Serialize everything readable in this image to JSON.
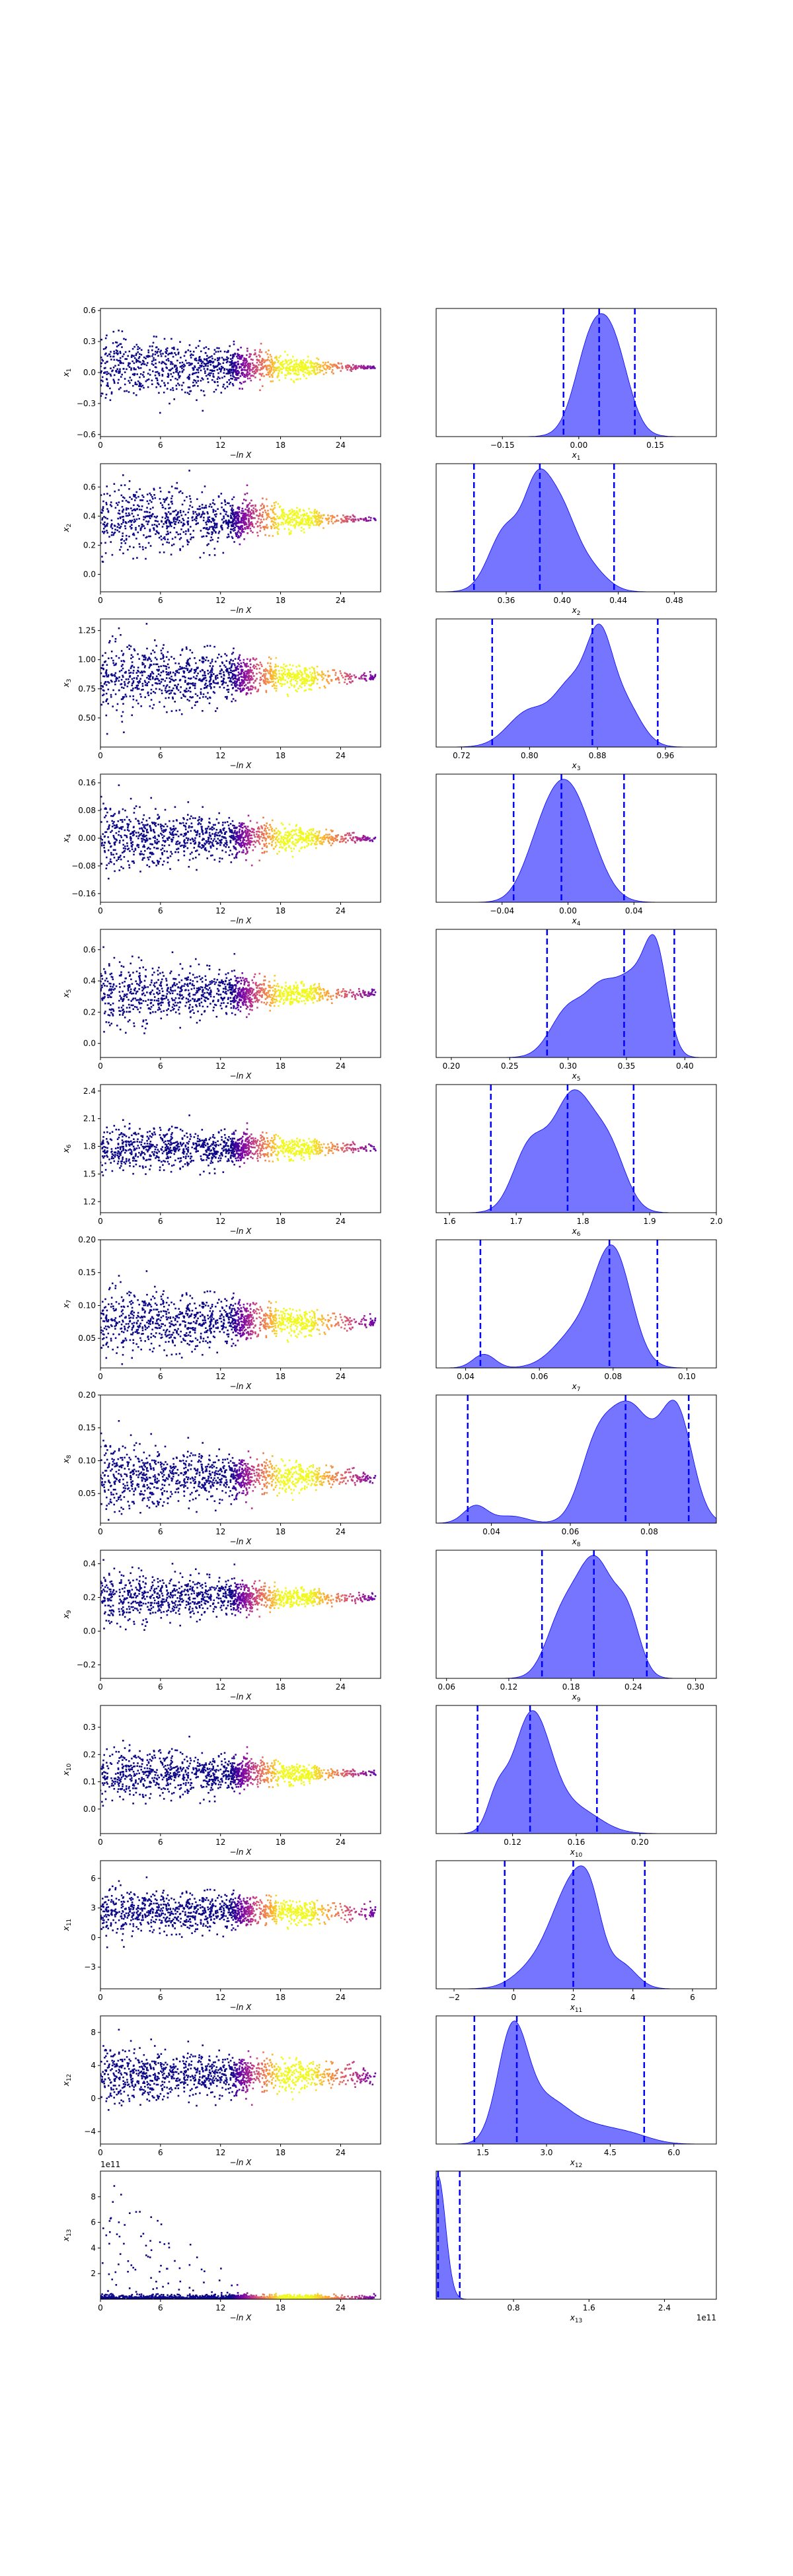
{
  "figure": {
    "type": "nested-sampling-run-plot",
    "left_xlabel": "−ln X",
    "colormap": [
      "#0d0887",
      "#6a00a8",
      "#b12a90",
      "#e16462",
      "#fca636",
      "#f0f921"
    ],
    "kde_fill": "#6666ff",
    "kde_edge": "#0000ff",
    "quantile_line": "#0000ff",
    "scatter_base": "#0d0887"
  },
  "chart_data": [
    {
      "type": "scatter",
      "param": "x",
      "sub": "1",
      "x_ticks": [
        "0",
        "6",
        "12",
        "18",
        "24"
      ],
      "xlim": [
        0,
        28
      ],
      "ylim": [
        -0.62,
        0.62
      ],
      "y_ticks": [
        "0.6",
        "0.3",
        "0.0",
        "−0.3",
        "−0.6"
      ],
      "y_tick_values": [
        0.6,
        0.3,
        0.0,
        -0.3,
        -0.6
      ],
      "center": 0.05,
      "spread0": 0.3,
      "spread_end": 0.02
    },
    {
      "type": "area",
      "param": "x",
      "sub": "1",
      "xlim": [
        -0.28,
        0.27
      ],
      "x_ticks": [
        "−0.15",
        "0.00",
        "0.15"
      ],
      "x_tick_values": [
        -0.15,
        0.0,
        0.15
      ],
      "quantiles": [
        -0.03,
        0.04,
        0.11
      ],
      "peaks": [
        [
          0.02,
          1.0,
          0.03
        ],
        [
          0.07,
          0.98,
          0.03
        ],
        [
          0.045,
          0.85,
          0.04
        ]
      ]
    },
    {
      "type": "scatter",
      "param": "x",
      "sub": "2",
      "x_ticks": [
        "0",
        "6",
        "12",
        "18",
        "24"
      ],
      "xlim": [
        0,
        28
      ],
      "ylim": [
        -0.12,
        0.76
      ],
      "y_ticks": [
        "0.6",
        "0.4",
        "0.2",
        "0.0"
      ],
      "y_tick_values": [
        0.6,
        0.4,
        0.2,
        0.0
      ],
      "center": 0.38,
      "spread0": 0.25,
      "spread_end": 0.015
    },
    {
      "type": "area",
      "param": "x",
      "sub": "2",
      "xlim": [
        0.31,
        0.51
      ],
      "x_ticks": [
        "0.36",
        "0.40",
        "0.44",
        "0.48"
      ],
      "x_tick_values": [
        0.36,
        0.4,
        0.44,
        0.48
      ],
      "quantiles": [
        0.337,
        0.384,
        0.437
      ],
      "peaks": [
        [
          0.36,
          0.75,
          0.012
        ],
        [
          0.381,
          0.85,
          0.009
        ],
        [
          0.397,
          1.0,
          0.012
        ],
        [
          0.42,
          0.25,
          0.012
        ]
      ]
    },
    {
      "type": "scatter",
      "param": "x",
      "sub": "3",
      "x_ticks": [
        "0",
        "6",
        "12",
        "18",
        "24"
      ],
      "xlim": [
        0,
        28
      ],
      "ylim": [
        0.25,
        1.35
      ],
      "y_ticks": [
        "1.25",
        "1.00",
        "0.75",
        "0.50"
      ],
      "y_tick_values": [
        1.25,
        1.0,
        0.75,
        0.5
      ],
      "center": 0.85,
      "spread0": 0.3,
      "spread_end": 0.03
    },
    {
      "type": "area",
      "param": "x",
      "sub": "3",
      "xlim": [
        0.69,
        1.02
      ],
      "x_ticks": [
        "0.72",
        "0.80",
        "0.88",
        "0.96"
      ],
      "x_tick_values": [
        0.72,
        0.8,
        0.88,
        0.96
      ],
      "quantiles": [
        0.756,
        0.874,
        0.951
      ],
      "peaks": [
        [
          0.8,
          0.4,
          0.025
        ],
        [
          0.85,
          0.65,
          0.02
        ],
        [
          0.882,
          1.0,
          0.015
        ],
        [
          0.91,
          0.5,
          0.02
        ]
      ]
    },
    {
      "type": "scatter",
      "param": "x",
      "sub": "4",
      "x_ticks": [
        "0",
        "6",
        "12",
        "18",
        "24"
      ],
      "xlim": [
        0,
        28
      ],
      "ylim": [
        -0.185,
        0.185
      ],
      "y_ticks": [
        "0.16",
        "0.08",
        "0.00",
        "−0.08",
        "−0.16"
      ],
      "y_tick_values": [
        0.16,
        0.08,
        0.0,
        -0.08,
        -0.16
      ],
      "center": 0.0,
      "spread0": 0.09,
      "spread_end": 0.008
    },
    {
      "type": "area",
      "param": "x",
      "sub": "4",
      "xlim": [
        -0.08,
        0.09
      ],
      "x_ticks": [
        "−0.04",
        "0.00",
        "0.04"
      ],
      "x_tick_values": [
        -0.04,
        0.0,
        0.04
      ],
      "quantiles": [
        -0.033,
        -0.004,
        0.034
      ],
      "peaks": [
        [
          -0.005,
          1.0,
          0.012
        ],
        [
          0.01,
          0.55,
          0.012
        ],
        [
          -0.02,
          0.3,
          0.01
        ]
      ]
    },
    {
      "type": "scatter",
      "param": "x",
      "sub": "5",
      "x_ticks": [
        "0",
        "6",
        "12",
        "18",
        "24"
      ],
      "xlim": [
        0,
        28
      ],
      "ylim": [
        -0.09,
        0.73
      ],
      "y_ticks": [
        "0.6",
        "0.4",
        "0.2",
        "0.0"
      ],
      "y_tick_values": [
        0.6,
        0.4,
        0.2,
        0.0
      ],
      "center": 0.32,
      "spread0": 0.2,
      "spread_end": 0.02
    },
    {
      "type": "area",
      "param": "x",
      "sub": "5",
      "xlim": [
        0.187,
        0.427
      ],
      "x_ticks": [
        "0.20",
        "0.25",
        "0.30",
        "0.35",
        "0.40"
      ],
      "x_tick_values": [
        0.2,
        0.25,
        0.3,
        0.35,
        0.4
      ],
      "quantiles": [
        0.282,
        0.348,
        0.391
      ],
      "peaks": [
        [
          0.3,
          0.45,
          0.015
        ],
        [
          0.33,
          0.62,
          0.014
        ],
        [
          0.375,
          1.0,
          0.01
        ],
        [
          0.355,
          0.6,
          0.012
        ]
      ]
    },
    {
      "type": "scatter",
      "param": "x",
      "sub": "6",
      "x_ticks": [
        "0",
        "6",
        "12",
        "18",
        "24"
      ],
      "xlim": [
        0,
        28
      ],
      "ylim": [
        1.08,
        2.47
      ],
      "y_ticks": [
        "2.4",
        "2.1",
        "1.8",
        "1.5",
        "1.2"
      ],
      "y_tick_values": [
        2.4,
        2.1,
        1.8,
        1.5,
        1.2
      ],
      "center": 1.78,
      "spread0": 0.25,
      "spread_end": 0.05
    },
    {
      "type": "area",
      "param": "x",
      "sub": "6",
      "xlim": [
        1.58,
        2.0
      ],
      "x_ticks": [
        "1.6",
        "1.7",
        "1.8",
        "1.9",
        "2.0"
      ],
      "x_tick_values": [
        1.6,
        1.7,
        1.8,
        1.9,
        2.0
      ],
      "quantiles": [
        1.662,
        1.777,
        1.876
      ],
      "peaks": [
        [
          1.72,
          0.55,
          0.025
        ],
        [
          1.785,
          1.0,
          0.03
        ],
        [
          1.84,
          0.5,
          0.025
        ]
      ]
    },
    {
      "type": "scatter",
      "param": "x",
      "sub": "7",
      "x_ticks": [
        "0",
        "6",
        "12",
        "18",
        "24"
      ],
      "xlim": [
        0,
        28
      ],
      "ylim": [
        0.005,
        0.2
      ],
      "y_ticks": [
        "0.20",
        "0.15",
        "0.10",
        "0.05"
      ],
      "y_tick_values": [
        0.2,
        0.15,
        0.1,
        0.05
      ],
      "center": 0.075,
      "spread0": 0.05,
      "spread_end": 0.008
    },
    {
      "type": "area",
      "param": "x",
      "sub": "7",
      "xlim": [
        0.032,
        0.108
      ],
      "x_ticks": [
        "0.04",
        "0.06",
        "0.08",
        "0.10"
      ],
      "x_tick_values": [
        0.04,
        0.06,
        0.08,
        0.1
      ],
      "quantiles": [
        0.044,
        0.079,
        0.092
      ],
      "peaks": [
        [
          0.045,
          0.12,
          0.003
        ],
        [
          0.07,
          0.3,
          0.006
        ],
        [
          0.08,
          1.0,
          0.005
        ]
      ]
    },
    {
      "type": "scatter",
      "param": "x",
      "sub": "8",
      "x_ticks": [
        "0",
        "6",
        "12",
        "18",
        "24"
      ],
      "xlim": [
        0,
        28
      ],
      "ylim": [
        0.005,
        0.2
      ],
      "y_ticks": [
        "0.20",
        "0.15",
        "0.10",
        "0.05"
      ],
      "y_tick_values": [
        0.2,
        0.15,
        0.1,
        0.05
      ],
      "center": 0.075,
      "spread0": 0.05,
      "spread_end": 0.008
    },
    {
      "type": "area",
      "param": "x",
      "sub": "8",
      "xlim": [
        0.026,
        0.097
      ],
      "x_ticks": [
        "0.04",
        "0.06",
        "0.08"
      ],
      "x_tick_values": [
        0.04,
        0.06,
        0.08
      ],
      "quantiles": [
        0.034,
        0.074,
        0.09
      ],
      "peaks": [
        [
          0.036,
          0.15,
          0.003
        ],
        [
          0.045,
          0.06,
          0.004
        ],
        [
          0.066,
          0.45,
          0.004
        ],
        [
          0.075,
          1.0,
          0.006
        ],
        [
          0.087,
          0.9,
          0.004
        ]
      ]
    },
    {
      "type": "scatter",
      "param": "x",
      "sub": "9",
      "x_ticks": [
        "0",
        "6",
        "12",
        "18",
        "24"
      ],
      "xlim": [
        0,
        28
      ],
      "ylim": [
        -0.28,
        0.48
      ],
      "y_ticks": [
        "0.4",
        "0.2",
        "0.0",
        "−0.2"
      ],
      "y_tick_values": [
        0.4,
        0.2,
        0.0,
        -0.2
      ],
      "center": 0.2,
      "spread0": 0.15,
      "spread_end": 0.02
    },
    {
      "type": "area",
      "param": "x",
      "sub": "9",
      "xlim": [
        0.05,
        0.32
      ],
      "x_ticks": [
        "0.06",
        "0.12",
        "0.18",
        "0.24",
        "0.30"
      ],
      "x_tick_values": [
        0.06,
        0.12,
        0.18,
        0.24,
        0.3
      ],
      "quantiles": [
        0.152,
        0.202,
        0.253
      ],
      "peaks": [
        [
          0.17,
          0.45,
          0.015
        ],
        [
          0.203,
          1.0,
          0.018
        ],
        [
          0.235,
          0.45,
          0.012
        ]
      ]
    },
    {
      "type": "scatter",
      "param": "x",
      "sub": "10",
      "x_ticks": [
        "0",
        "6",
        "12",
        "18",
        "24"
      ],
      "xlim": [
        0,
        28
      ],
      "ylim": [
        -0.09,
        0.38
      ],
      "y_ticks": [
        "0.3",
        "0.2",
        "0.1",
        "0.0"
      ],
      "y_tick_values": [
        0.3,
        0.2,
        0.1,
        0.0
      ],
      "center": 0.13,
      "spread0": 0.1,
      "spread_end": 0.01
    },
    {
      "type": "area",
      "param": "x",
      "sub": "10",
      "xlim": [
        0.072,
        0.248
      ],
      "x_ticks": [
        "0.12",
        "0.16",
        "0.20"
      ],
      "x_tick_values": [
        0.12,
        0.16,
        0.2
      ],
      "quantiles": [
        0.098,
        0.131,
        0.173
      ],
      "peaks": [
        [
          0.132,
          1.0,
          0.012
        ],
        [
          0.16,
          0.2,
          0.015
        ],
        [
          0.11,
          0.25,
          0.006
        ]
      ]
    },
    {
      "type": "scatter",
      "param": "x",
      "sub": "11",
      "x_ticks": [
        "0",
        "6",
        "12",
        "18",
        "24"
      ],
      "xlim": [
        0,
        28
      ],
      "ylim": [
        -5.2,
        7.8
      ],
      "y_ticks": [
        "6",
        "3",
        "0",
        "−3"
      ],
      "y_tick_values": [
        6,
        3,
        0,
        -3
      ],
      "center": 2.6,
      "spread0": 2.2,
      "spread_end": 0.7
    },
    {
      "type": "area",
      "param": "x",
      "sub": "11",
      "xlim": [
        -2.6,
        6.8
      ],
      "x_ticks": [
        "−2",
        "0",
        "2",
        "4",
        "6"
      ],
      "x_tick_values": [
        -2,
        0,
        2,
        4,
        6
      ],
      "quantiles": [
        -0.3,
        2.0,
        4.4
      ],
      "peaks": [
        [
          0.8,
          0.35,
          0.7
        ],
        [
          2.05,
          0.9,
          0.45
        ],
        [
          2.6,
          1.0,
          0.4
        ],
        [
          1.5,
          0.6,
          0.5
        ],
        [
          3.6,
          0.35,
          0.5
        ]
      ]
    },
    {
      "type": "scatter",
      "param": "x",
      "sub": "12",
      "x_ticks": [
        "0",
        "6",
        "12",
        "18",
        "24"
      ],
      "xlim": [
        0,
        28
      ],
      "ylim": [
        -5.5,
        10.0
      ],
      "y_ticks": [
        "8",
        "4",
        "0",
        "−4"
      ],
      "y_tick_values": [
        8,
        4,
        0,
        -4
      ],
      "center": 2.8,
      "spread0": 3.2,
      "spread_end": 1.0
    },
    {
      "type": "area",
      "param": "x",
      "sub": "12",
      "xlim": [
        0.4,
        7.0
      ],
      "x_ticks": [
        "1.5",
        "3.0",
        "4.5",
        "6.0"
      ],
      "x_tick_values": [
        1.5,
        3.0,
        4.5,
        6.0
      ],
      "quantiles": [
        1.3,
        2.3,
        5.3
      ],
      "peaks": [
        [
          2.2,
          1.0,
          0.35
        ],
        [
          3.0,
          0.35,
          0.5
        ],
        [
          4.0,
          0.15,
          0.6
        ],
        [
          5.0,
          0.07,
          0.5
        ]
      ]
    },
    {
      "type": "scatter",
      "param": "x",
      "sub": "13",
      "x_ticks": [
        "0",
        "6",
        "12",
        "18",
        "24"
      ],
      "xlim": [
        0,
        28
      ],
      "ylim": [
        0,
        10
      ],
      "y_ticks": [
        "8",
        "6",
        "4",
        "2"
      ],
      "y_tick_values": [
        8,
        6,
        4,
        2
      ],
      "center": 0.05,
      "spread0": 0,
      "spread_end": 0,
      "offset_text": "1e11"
    },
    {
      "type": "area",
      "param": "x",
      "sub": "13",
      "xlim": [
        -0.02,
        2.95
      ],
      "x_ticks": [
        "0.8",
        "1.6",
        "2.4"
      ],
      "x_tick_values": [
        0.8,
        1.6,
        2.4
      ],
      "quantiles": [
        0.0,
        0.0,
        0.23
      ],
      "peaks": [
        [
          0.0,
          1.0,
          0.08
        ]
      ],
      "offset_text": "1e11"
    }
  ]
}
